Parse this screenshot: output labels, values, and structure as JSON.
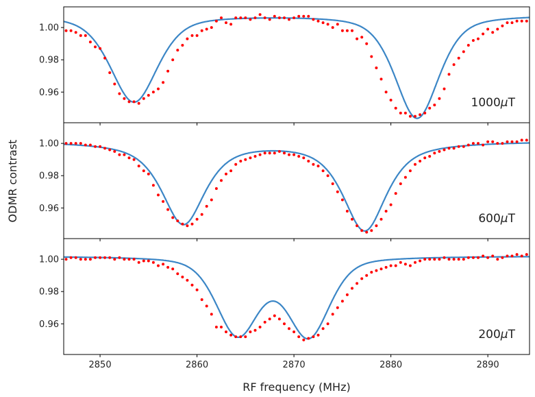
{
  "chart_data": {
    "type": "scatter",
    "xlabel": "RF frequency (MHz)",
    "ylabel": "ODMR contrast",
    "xlim": [
      2846.25,
      2894.3
    ],
    "ylim": [
      0.941,
      1.0128
    ],
    "xticks": [
      2850,
      2860,
      2870,
      2880,
      2890
    ],
    "xtick_labels": [
      "2850",
      "2860",
      "2870",
      "2880",
      "2890"
    ],
    "yticks": [
      1.0,
      0.98,
      0.96
    ],
    "ytick_labels": [
      "1.00",
      "0.98",
      "0.96"
    ],
    "grid": false,
    "colors": {
      "data": "#ff0000",
      "fit": "#3b86c6"
    },
    "data_x_start": 2846.5,
    "data_x_step": 0.5,
    "panels": [
      {
        "label": "1000μT",
        "label_value": "1000",
        "label_unit": "μT",
        "fit": {
          "model": "pseudo-voigt",
          "baseline": 1.008,
          "eta": 0.5,
          "dips": [
            {
              "center": 2853.5,
              "depth": 0.054,
              "hwhm": 2.9
            },
            {
              "center": 2882.7,
              "depth": 0.064,
              "hwhm": 2.7
            }
          ]
        },
        "data_y": [
          0.998,
          0.998,
          0.997,
          0.995,
          0.995,
          0.991,
          0.988,
          0.987,
          0.981,
          0.972,
          0.965,
          0.959,
          0.956,
          0.954,
          0.954,
          0.953,
          0.956,
          0.958,
          0.96,
          0.962,
          0.966,
          0.973,
          0.98,
          0.986,
          0.989,
          0.993,
          0.995,
          0.995,
          0.998,
          0.999,
          1.0,
          1.004,
          1.006,
          1.003,
          1.002,
          1.006,
          1.006,
          1.006,
          1.005,
          1.006,
          1.008,
          1.006,
          1.005,
          1.007,
          1.006,
          1.006,
          1.005,
          1.006,
          1.007,
          1.007,
          1.007,
          1.005,
          1.004,
          1.003,
          1.002,
          1.0,
          1.002,
          0.998,
          0.998,
          0.998,
          0.993,
          0.994,
          0.99,
          0.982,
          0.975,
          0.968,
          0.96,
          0.955,
          0.95,
          0.947,
          0.947,
          0.945,
          0.945,
          0.946,
          0.947,
          0.95,
          0.952,
          0.956,
          0.962,
          0.971,
          0.977,
          0.981,
          0.985,
          0.989,
          0.992,
          0.993,
          0.996,
          0.999,
          0.997,
          0.999,
          1.001,
          1.003,
          1.003,
          1.004,
          1.004,
          1.004,
          1.005
        ]
      },
      {
        "label": "600μT",
        "label_value": "600",
        "label_unit": "μT",
        "fit": {
          "model": "pseudo-voigt",
          "baseline": 1.0015,
          "eta": 0.75,
          "dips": [
            {
              "center": 2858.6,
              "depth": 0.051,
              "hwhm": 2.7
            },
            {
              "center": 2877.3,
              "depth": 0.055,
              "hwhm": 2.7
            }
          ]
        },
        "data_y": [
          1.0,
          1.0,
          1.0,
          1.0,
          0.999,
          0.999,
          0.998,
          0.998,
          0.997,
          0.996,
          0.995,
          0.993,
          0.993,
          0.991,
          0.99,
          0.986,
          0.983,
          0.981,
          0.974,
          0.968,
          0.964,
          0.959,
          0.954,
          0.952,
          0.95,
          0.949,
          0.95,
          0.953,
          0.956,
          0.961,
          0.965,
          0.972,
          0.977,
          0.981,
          0.983,
          0.987,
          0.989,
          0.99,
          0.991,
          0.992,
          0.993,
          0.994,
          0.994,
          0.994,
          0.995,
          0.994,
          0.993,
          0.993,
          0.992,
          0.991,
          0.989,
          0.987,
          0.986,
          0.983,
          0.98,
          0.975,
          0.97,
          0.965,
          0.958,
          0.953,
          0.949,
          0.946,
          0.945,
          0.946,
          0.949,
          0.953,
          0.958,
          0.962,
          0.969,
          0.975,
          0.979,
          0.983,
          0.987,
          0.989,
          0.991,
          0.992,
          0.994,
          0.995,
          0.996,
          0.997,
          0.997,
          0.998,
          0.998,
          0.999,
          1.0,
          1.0,
          0.999,
          1.001,
          1.001,
          1.0,
          1.0,
          1.001,
          1.001,
          1.001,
          1.002,
          1.002,
          1.002
        ]
      },
      {
        "label": "200μT",
        "label_value": "200",
        "label_unit": "μT",
        "fit": {
          "model": "pseudo-voigt",
          "baseline": 1.002,
          "eta": 0.4,
          "dips": [
            {
              "center": 2864.2,
              "depth": 0.048,
              "hwhm": 2.6
            },
            {
              "center": 2871.5,
              "depth": 0.049,
              "hwhm": 2.6
            }
          ]
        },
        "data_y": [
          1.0,
          1.001,
          1.001,
          1.0,
          1.0,
          1.0,
          1.001,
          1.001,
          1.001,
          1.001,
          1.0,
          1.001,
          1.0,
          1.0,
          1.0,
          0.998,
          0.999,
          0.999,
          0.998,
          0.996,
          0.997,
          0.995,
          0.994,
          0.991,
          0.989,
          0.987,
          0.984,
          0.981,
          0.975,
          0.971,
          0.966,
          0.958,
          0.958,
          0.955,
          0.953,
          0.952,
          0.952,
          0.952,
          0.955,
          0.956,
          0.958,
          0.961,
          0.963,
          0.965,
          0.963,
          0.96,
          0.957,
          0.955,
          0.952,
          0.95,
          0.951,
          0.952,
          0.953,
          0.957,
          0.96,
          0.966,
          0.97,
          0.974,
          0.978,
          0.982,
          0.985,
          0.988,
          0.99,
          0.992,
          0.993,
          0.994,
          0.995,
          0.996,
          0.996,
          0.998,
          0.997,
          0.996,
          0.998,
          0.999,
          1.0,
          1.0,
          1.0,
          1.0,
          1.001,
          1.0,
          1.0,
          1.0,
          1.0,
          1.001,
          1.001,
          1.001,
          1.002,
          1.001,
          1.002,
          1.0,
          1.001,
          1.002,
          1.002,
          1.003,
          1.002,
          1.003,
          1.003
        ]
      }
    ]
  }
}
